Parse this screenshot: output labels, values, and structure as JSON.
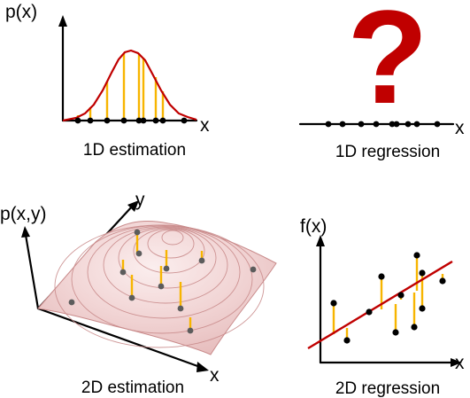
{
  "panels": {
    "estimation_1d": {
      "y_axis_label": "p(x)",
      "x_axis_label": "x",
      "caption": "1D estimation"
    },
    "regression_1d": {
      "mark": "?",
      "x_axis_label": "x",
      "caption": "1D regression"
    },
    "estimation_2d": {
      "z_axis_label": "p(x,y)",
      "y_axis_label": "y",
      "x_axis_label": "x",
      "caption": "2D estimation"
    },
    "regression_2d": {
      "y_axis_label": "f(x)",
      "x_axis_label": "x",
      "caption": "2D regression"
    }
  },
  "colors": {
    "curve": "#c00000",
    "stem": "#f7b500",
    "point": "#000000",
    "surface": "#f2d6d6"
  }
}
